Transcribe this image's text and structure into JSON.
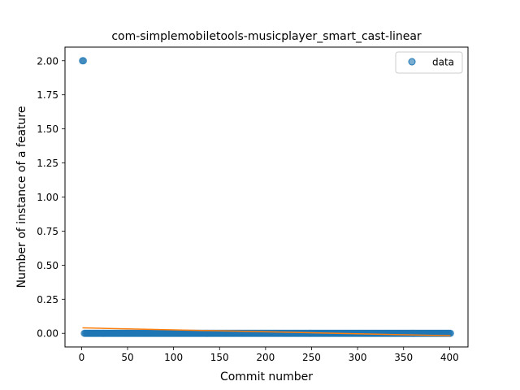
{
  "chart_data": {
    "type": "scatter",
    "title": "com-simplemobiletools-musicplayer_smart_cast-linear",
    "xlabel": "Commit number",
    "ylabel": "Number of instance of a feature",
    "xlim": [
      -18,
      420
    ],
    "ylim": [
      -0.1,
      2.1
    ],
    "xticks": [
      0,
      50,
      100,
      150,
      200,
      250,
      300,
      350,
      400
    ],
    "yticks": [
      0.0,
      0.25,
      0.5,
      0.75,
      1.0,
      1.25,
      1.5,
      1.75,
      2.0
    ],
    "ytick_labels": [
      "0.00",
      "0.25",
      "0.50",
      "0.75",
      "1.00",
      "1.25",
      "1.50",
      "1.75",
      "2.00"
    ],
    "grid": false,
    "legend_position": "top-right",
    "series": [
      {
        "name": "data",
        "kind": "scatter",
        "color": "#1f77b4",
        "points": [
          [
            1,
            2
          ],
          [
            2,
            2
          ]
        ],
        "constant_run": {
          "x_start": 3,
          "x_end": 401,
          "y": 0
        }
      },
      {
        "kind": "line",
        "color": "#ff7f0e",
        "x": [
          1,
          401
        ],
        "y": [
          0.04,
          -0.018
        ]
      }
    ]
  }
}
